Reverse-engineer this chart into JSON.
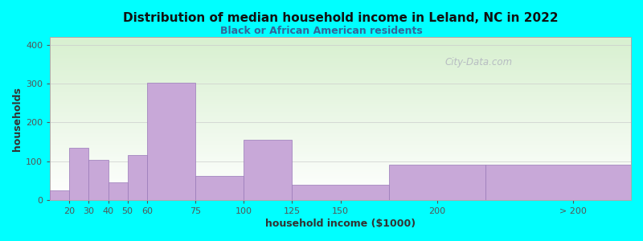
{
  "title": "Distribution of median household income in Leland, NC in 2022",
  "subtitle": "Black or African American residents",
  "xlabel": "household income ($1000)",
  "ylabel": "households",
  "tick_labels": [
    "20",
    "30",
    "40",
    "50",
    "60",
    "75",
    "100",
    "125",
    "150",
    "200",
    "> 200"
  ],
  "bar_values": [
    25,
    135,
    103,
    45,
    115,
    303,
    62,
    155,
    40,
    90,
    90
  ],
  "bar_lefts": [
    0,
    10,
    20,
    30,
    40,
    50,
    75,
    100,
    125,
    175,
    225
  ],
  "bar_widths": [
    10,
    10,
    10,
    10,
    10,
    25,
    25,
    25,
    50,
    50,
    75
  ],
  "tick_positions": [
    10,
    20,
    30,
    40,
    50,
    75,
    100,
    125,
    150,
    200,
    270
  ],
  "xlim": [
    0,
    300
  ],
  "bar_color": "#c8a8d8",
  "bar_edgecolor": "#9878b8",
  "bg_color": "#00ffff",
  "title_color": "#111111",
  "subtitle_color": "#336699",
  "axis_label_color": "#333333",
  "tick_color": "#555555",
  "ylim": [
    0,
    420
  ],
  "yticks": [
    0,
    100,
    200,
    300,
    400
  ],
  "watermark": "City-Data.com",
  "watermark_color": "#aaaabb"
}
